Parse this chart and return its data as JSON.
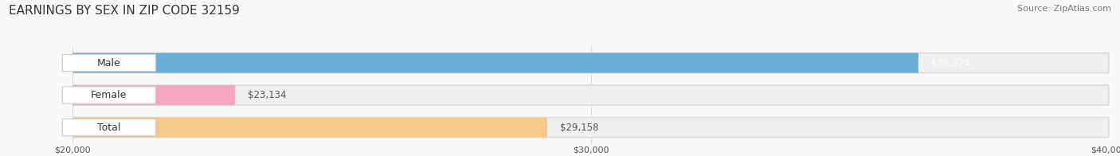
{
  "title": "EARNINGS BY SEX IN ZIP CODE 32159",
  "source": "Source: ZipAtlas.com",
  "categories": [
    "Male",
    "Female",
    "Total"
  ],
  "values": [
    36324,
    23134,
    29158
  ],
  "bar_colors": [
    "#6baed6",
    "#f4a8c0",
    "#f5c98a"
  ],
  "bar_bg_color": "#efefef",
  "xmin": 20000,
  "xmax": 40000,
  "xticks": [
    20000,
    30000,
    40000
  ],
  "xtick_labels": [
    "$20,000",
    "$30,000",
    "$40,000"
  ],
  "value_labels": [
    "$36,324",
    "$23,134",
    "$29,158"
  ],
  "value_label_colors": [
    "white",
    "#555555",
    "#555555"
  ],
  "title_fontsize": 11,
  "source_fontsize": 8,
  "cat_label_fontsize": 9,
  "value_label_fontsize": 8.5,
  "figsize": [
    14.06,
    1.96
  ],
  "dpi": 100,
  "bg_color": "#f9f9f9"
}
